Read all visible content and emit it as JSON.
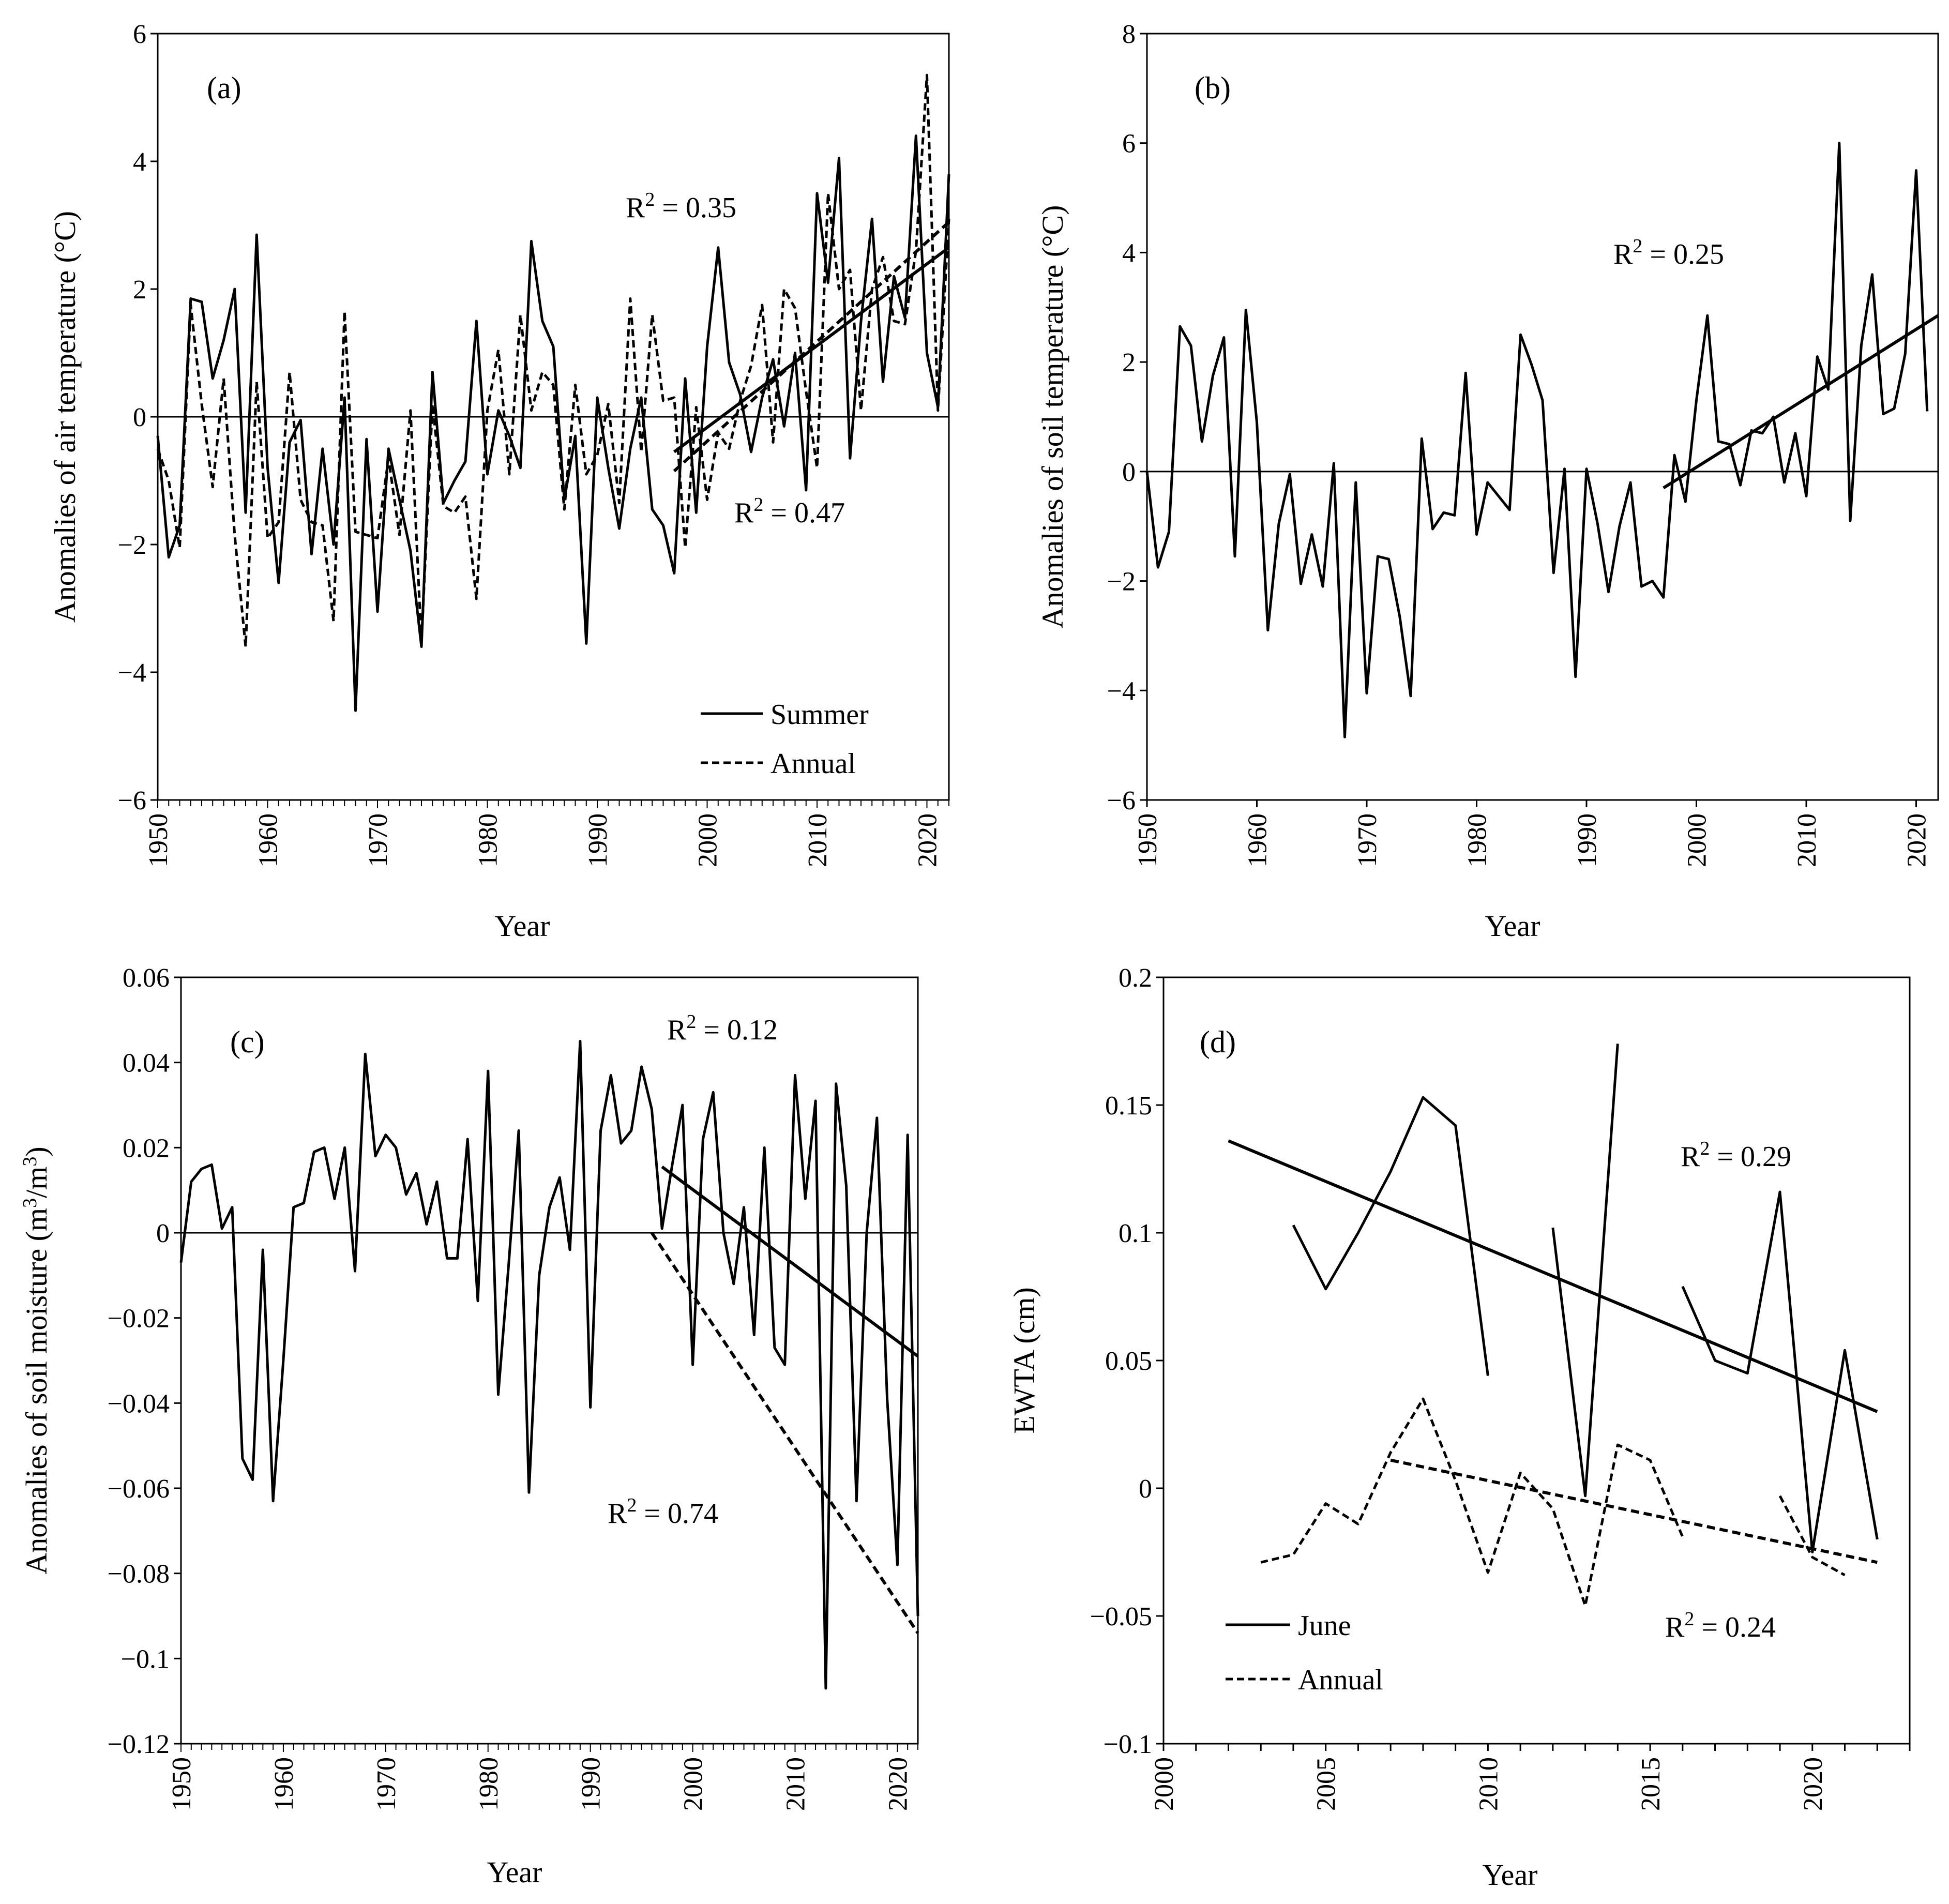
{
  "chart_data": [
    {
      "panel": "(a)",
      "type": "line",
      "xlabel": "Year",
      "ylabel": "Anomalies of air temperature (°C)",
      "xlim": [
        1950,
        2022
      ],
      "ylim": [
        -6,
        6
      ],
      "xticks": [
        "1950",
        "1960",
        "1970",
        "1980",
        "1990",
        "2000",
        "2010",
        "2020"
      ],
      "yticks": [
        "−6",
        "−4",
        "−2",
        "0",
        "2",
        "4",
        "6"
      ],
      "legend": [
        "Summer",
        "Annual"
      ],
      "legend_position": "bottom-right",
      "annotations": [
        "R",
        "2",
        " = 0.35",
        "R",
        "2",
        " = 0.47"
      ],
      "x": [
        1950,
        1951,
        1952,
        1953,
        1954,
        1955,
        1956,
        1957,
        1958,
        1959,
        1960,
        1961,
        1962,
        1963,
        1964,
        1965,
        1966,
        1967,
        1968,
        1969,
        1970,
        1971,
        1972,
        1973,
        1974,
        1975,
        1976,
        1977,
        1978,
        1979,
        1980,
        1981,
        1982,
        1983,
        1984,
        1985,
        1986,
        1987,
        1988,
        1989,
        1990,
        1991,
        1992,
        1993,
        1994,
        1995,
        1996,
        1997,
        1998,
        1999,
        2000,
        2001,
        2002,
        2003,
        2004,
        2005,
        2006,
        2007,
        2008,
        2009,
        2010,
        2011,
        2012,
        2013,
        2014,
        2015,
        2016,
        2017,
        2018,
        2019,
        2020,
        2021,
        2022
      ],
      "series": [
        {
          "name": "Summer",
          "style": "solid",
          "values": [
            -0.3,
            -2.2,
            -1.7,
            1.85,
            1.8,
            0.6,
            1.2,
            2.0,
            -1.5,
            2.85,
            -0.8,
            -2.6,
            -0.4,
            -0.05,
            -2.15,
            -0.5,
            -2.0,
            0.3,
            -4.6,
            -0.35,
            -3.05,
            -0.5,
            -1.3,
            -2.1,
            -3.6,
            0.7,
            -1.35,
            -1.0,
            -0.7,
            1.5,
            -0.9,
            0.1,
            -0.3,
            -0.8,
            2.75,
            1.5,
            1.1,
            -1.3,
            -0.3,
            -3.55,
            0.3,
            -0.8,
            -1.75,
            -0.5,
            0.3,
            -1.45,
            -1.7,
            -2.45,
            0.6,
            -1.5,
            1.1,
            2.65,
            0.85,
            0.35,
            -0.55,
            0.3,
            0.9,
            -0.15,
            1.0,
            -1.15,
            3.5,
            2.1,
            4.05,
            -0.65,
            1.5,
            3.1,
            0.55,
            2.2,
            1.55,
            4.4,
            1.0,
            0.15,
            3.8
          ]
        },
        {
          "name": "Annual",
          "style": "dashed",
          "values": [
            -0.5,
            -1.0,
            -2.05,
            1.75,
            0.2,
            -1.1,
            0.6,
            -1.85,
            -3.6,
            0.55,
            -1.9,
            -1.65,
            0.7,
            -1.3,
            -1.65,
            -1.7,
            -3.2,
            1.65,
            -1.8,
            -1.85,
            -1.9,
            -0.65,
            -1.85,
            0.1,
            -3.55,
            0.2,
            -1.4,
            -1.5,
            -1.25,
            -2.85,
            0.1,
            1.05,
            -0.9,
            1.6,
            0.1,
            0.7,
            0.5,
            -1.45,
            0.5,
            -0.9,
            -0.6,
            0.2,
            -1.35,
            1.85,
            -0.55,
            1.6,
            0.25,
            0.3,
            -2.05,
            0.15,
            -1.3,
            -0.25,
            -0.5,
            0.25,
            0.8,
            1.75,
            -0.4,
            2.0,
            1.7,
            0.4,
            -0.8,
            3.5,
            2.0,
            2.3,
            0.1,
            2.0,
            2.5,
            1.5,
            1.45,
            2.6,
            5.35,
            0.1,
            3.1
          ]
        }
      ],
      "trendlines": [
        {
          "style": "solid",
          "x": [
            1997,
            2022
          ],
          "y": [
            -0.55,
            2.65
          ]
        },
        {
          "style": "dashed",
          "x": [
            1997,
            2022
          ],
          "y": [
            -0.85,
            3.05
          ]
        }
      ]
    },
    {
      "panel": "(b)",
      "type": "line",
      "xlabel": "Year",
      "ylabel": "Anomalies of soil temperature (°C)",
      "xlim": [
        1950,
        2022
      ],
      "ylim": [
        -6,
        8
      ],
      "xticks": [
        "1950",
        "1960",
        "1970",
        "1980",
        "1990",
        "2000",
        "2010",
        "2020"
      ],
      "yticks": [
        "−6",
        "−4",
        "−2",
        "0",
        "2",
        "4",
        "6",
        "8"
      ],
      "annotations": [
        "R",
        "2",
        " = 0.25"
      ],
      "x": [
        1950,
        1951,
        1952,
        1953,
        1954,
        1955,
        1956,
        1957,
        1958,
        1959,
        1960,
        1961,
        1962,
        1963,
        1964,
        1965,
        1966,
        1967,
        1968,
        1969,
        1970,
        1971,
        1972,
        1973,
        1974,
        1975,
        1976,
        1977,
        1978,
        1979,
        1980,
        1981,
        1982,
        1983,
        1984,
        1985,
        1986,
        1987,
        1988,
        1989,
        1990,
        1991,
        1992,
        1993,
        1994,
        1995,
        1996,
        1997,
        1998,
        1999,
        2000,
        2001,
        2002,
        2003,
        2004,
        2005,
        2006,
        2007,
        2008,
        2009,
        2010,
        2011,
        2012,
        2013,
        2014,
        2015,
        2016,
        2017,
        2018,
        2019,
        2020,
        2021
      ],
      "series": [
        {
          "name": "Soil temperature",
          "style": "solid",
          "values": [
            0.0,
            -1.75,
            -1.1,
            2.65,
            2.3,
            0.55,
            1.75,
            2.45,
            -1.55,
            2.95,
            0.9,
            -2.9,
            -0.95,
            -0.05,
            -2.05,
            -1.15,
            -2.1,
            0.15,
            -4.85,
            -0.2,
            -4.05,
            -1.55,
            -1.6,
            -2.65,
            -4.1,
            0.6,
            -1.05,
            -0.75,
            -0.8,
            1.8,
            -1.15,
            -0.2,
            -0.45,
            -0.7,
            2.5,
            1.95,
            1.3,
            -1.85,
            0.05,
            -3.75,
            0.05,
            -0.95,
            -2.2,
            -1.0,
            -0.2,
            -2.1,
            -2.0,
            -2.3,
            0.3,
            -0.55,
            1.3,
            2.85,
            0.55,
            0.5,
            -0.25,
            0.75,
            0.7,
            1.0,
            -0.2,
            0.7,
            -0.45,
            2.1,
            1.5,
            6.0,
            -0.9,
            2.3,
            3.6,
            1.05,
            1.15,
            2.15,
            5.5,
            1.1
          ]
        }
      ],
      "trendlines": [
        {
          "style": "solid",
          "x": [
            1997,
            2022
          ],
          "y": [
            -0.3,
            2.85
          ]
        }
      ]
    },
    {
      "panel": "(c)",
      "type": "line",
      "xlabel": "Year",
      "ylabel": "Anomalies of soil moisture (m3/m3)",
      "ylabel_parts": [
        "Anomalies of soil moisture (m",
        "3",
        "/m",
        "3",
        ")"
      ],
      "xlim": [
        1950,
        2022
      ],
      "ylim": [
        -0.12,
        0.06
      ],
      "xticks": [
        "1950",
        "1960",
        "1970",
        "1980",
        "1990",
        "2000",
        "2010",
        "2020"
      ],
      "yticks": [
        "−0.12",
        "−0.1",
        "−0.08",
        "−0.06",
        "−0.04",
        "−0.02",
        "0",
        "0.02",
        "0.04",
        "0.06"
      ],
      "annotations": [
        "R",
        "2",
        " = 0.12",
        "R",
        "2",
        " = 0.74"
      ],
      "x": [
        1950,
        1951,
        1952,
        1953,
        1954,
        1955,
        1956,
        1957,
        1958,
        1959,
        1960,
        1961,
        1962,
        1963,
        1964,
        1965,
        1966,
        1967,
        1968,
        1969,
        1970,
        1971,
        1972,
        1973,
        1974,
        1975,
        1976,
        1977,
        1978,
        1979,
        1980,
        1981,
        1982,
        1983,
        1984,
        1985,
        1986,
        1987,
        1988,
        1989,
        1990,
        1991,
        1992,
        1993,
        1994,
        1995,
        1996,
        1997,
        1998,
        1999,
        2000,
        2001,
        2002,
        2003,
        2004,
        2005,
        2006,
        2007,
        2008,
        2009,
        2010,
        2011,
        2012,
        2013,
        2014,
        2015,
        2016,
        2017,
        2018,
        2019,
        2020,
        2021,
        2022
      ],
      "series": [
        {
          "name": "Soil moisture",
          "style": "solid",
          "values": [
            -0.007,
            0.012,
            0.015,
            0.016,
            0.001,
            0.006,
            -0.053,
            -0.058,
            -0.004,
            -0.063,
            -0.03,
            0.006,
            0.007,
            0.019,
            0.02,
            0.008,
            0.02,
            -0.009,
            0.042,
            0.018,
            0.023,
            0.02,
            0.009,
            0.014,
            0.002,
            0.012,
            -0.006,
            -0.006,
            0.022,
            -0.016,
            0.038,
            -0.038,
            -0.008,
            0.024,
            -0.061,
            -0.01,
            0.006,
            0.013,
            -0.004,
            0.045,
            -0.041,
            0.024,
            0.037,
            0.021,
            0.024,
            0.039,
            0.029,
            0.001,
            0.016,
            0.03,
            -0.031,
            0.022,
            0.033,
            0.0,
            -0.012,
            0.006,
            -0.024,
            0.02,
            -0.027,
            -0.031,
            0.037,
            0.008,
            0.031,
            -0.107,
            0.035,
            0.011,
            -0.063,
            0.0,
            0.027,
            -0.039,
            -0.078,
            0.023,
            -0.09
          ]
        }
      ],
      "trendlines": [
        {
          "style": "solid",
          "x": [
            1997,
            2022
          ],
          "y": [
            0.0155,
            -0.029
          ]
        },
        {
          "style": "dashed",
          "x": [
            1996,
            2022
          ],
          "y": [
            0.0,
            -0.094
          ]
        }
      ]
    },
    {
      "panel": "(d)",
      "type": "line",
      "xlabel": "Year",
      "ylabel": "EWTA (cm)",
      "xlim": [
        2000,
        2023
      ],
      "ylim": [
        -0.1,
        0.2
      ],
      "xticks": [
        "2000",
        "2005",
        "2010",
        "2015",
        "2020"
      ],
      "yticks": [
        "−0.1",
        "−0.05",
        "0",
        "0.05",
        "0.1",
        "0.15",
        "0.2"
      ],
      "legend": [
        "June",
        "Annual"
      ],
      "legend_position": "bottom-left",
      "annotations": [
        "R",
        "2",
        " = 0.29",
        "R",
        "2",
        " = 0.24"
      ],
      "series": [
        {
          "name": "June",
          "style": "solid",
          "segments": [
            {
              "x": [
                2004,
                2005,
                2006,
                2007,
                2008,
                2009,
                2010
              ],
              "y": [
                0.103,
                0.078,
                0.1,
                0.124,
                0.153,
                0.142,
                0.044
              ]
            },
            {
              "x": [
                2012,
                2013,
                2014
              ],
              "y": [
                0.102,
                -0.003,
                0.174
              ]
            },
            {
              "x": [
                2016,
                2017,
                2018,
                2019,
                2020,
                2021,
                2022
              ],
              "y": [
                0.079,
                0.05,
                0.045,
                0.116,
                -0.025,
                0.054,
                -0.02
              ]
            }
          ]
        },
        {
          "name": "Annual",
          "style": "dashed",
          "segments": [
            {
              "x": [
                2003,
                2004,
                2005,
                2006,
                2007,
                2008,
                2009,
                2010,
                2011,
                2012,
                2013,
                2014,
                2015,
                2016
              ],
              "y": [
                -0.029,
                -0.026,
                -0.006,
                -0.014,
                0.014,
                0.035,
                0.003,
                -0.033,
                0.006,
                -0.008,
                -0.046,
                0.017,
                0.011,
                -0.019
              ]
            },
            {
              "x": [
                2019,
                2020,
                2021
              ],
              "y": [
                -0.003,
                -0.027,
                -0.034
              ]
            }
          ]
        }
      ],
      "trendlines": [
        {
          "style": "solid",
          "x": [
            2002,
            2022
          ],
          "y": [
            0.136,
            0.03
          ]
        },
        {
          "style": "dashed",
          "x": [
            2007,
            2022
          ],
          "y": [
            0.011,
            -0.029
          ]
        }
      ]
    }
  ]
}
